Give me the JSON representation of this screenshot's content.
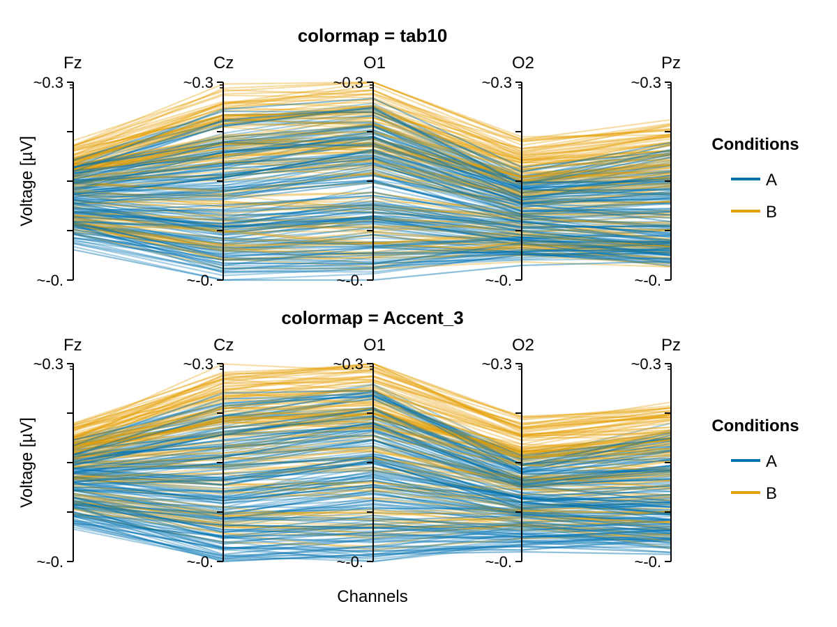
{
  "colors": {
    "A": "#0072b2",
    "B": "#e69f00"
  },
  "shared": {
    "xlabel": "Channels",
    "ylabel": "Voltage [µV]",
    "legend": {
      "title": "Conditions",
      "entries": [
        "A",
        "B"
      ],
      "placement": "right"
    }
  },
  "chart_data": [
    {
      "type": "line",
      "subtype": "parallel-coordinates",
      "title": "colormap = tab10",
      "xlabel": "",
      "ylabel": "Voltage [µV]",
      "categories": [
        "Fz",
        "Cz",
        "O1",
        "O2",
        "Pz"
      ],
      "axis_top_labels": [
        "~0.3",
        "~0.3",
        "~0.3",
        "~0.3",
        "~0.3"
      ],
      "axis_bottom_labels": [
        "~-0.",
        "~-0.",
        "~-0.",
        "~-0.",
        "~-0."
      ],
      "ylim": [
        0,
        0.3
      ],
      "legend": "right",
      "series": [
        {
          "name": "A",
          "color": "#0072b2",
          "median": [
            0.12,
            0.11,
            0.14,
            0.09,
            0.08
          ],
          "lower_envelope": [
            0.06,
            0.005,
            0.0,
            0.028,
            0.022
          ],
          "upper_envelope": [
            0.18,
            0.25,
            0.27,
            0.16,
            0.2
          ]
        },
        {
          "name": "B",
          "color": "#e69f00",
          "median": [
            0.16,
            0.18,
            0.19,
            0.14,
            0.15
          ],
          "lower_envelope": [
            0.07,
            0.03,
            0.02,
            0.04,
            0.03
          ],
          "upper_envelope": [
            0.2,
            0.29,
            0.3,
            0.21,
            0.24
          ]
        }
      ]
    },
    {
      "type": "line",
      "subtype": "parallel-coordinates",
      "title": "colormap = Accent_3",
      "xlabel": "Channels",
      "ylabel": "Voltage [µV]",
      "categories": [
        "Fz",
        "Cz",
        "O1",
        "O2",
        "Pz"
      ],
      "axis_top_labels": [
        "~0.3",
        "~0.3",
        "~0.3",
        "~0.3",
        "~0.3"
      ],
      "axis_bottom_labels": [
        "~-0.",
        "~-0.",
        "~-0.",
        "~-0.",
        "~-0."
      ],
      "ylim": [
        0,
        0.3
      ],
      "legend": "right",
      "series": [
        {
          "name": "A",
          "color": "#0072b2",
          "median": [
            0.12,
            0.11,
            0.14,
            0.09,
            0.08
          ],
          "lower_envelope": [
            0.06,
            0.005,
            0.0,
            0.028,
            0.022
          ],
          "upper_envelope": [
            0.18,
            0.25,
            0.27,
            0.16,
            0.2
          ]
        },
        {
          "name": "B",
          "color": "#e69f00",
          "median": [
            0.16,
            0.18,
            0.19,
            0.14,
            0.15
          ],
          "lower_envelope": [
            0.07,
            0.03,
            0.02,
            0.04,
            0.03
          ],
          "upper_envelope": [
            0.2,
            0.29,
            0.3,
            0.21,
            0.24
          ]
        }
      ]
    }
  ]
}
